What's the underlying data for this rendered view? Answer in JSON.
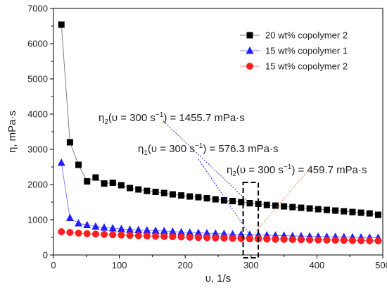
{
  "chart_data": {
    "type": "scatter",
    "xlabel": "υ, 1/s",
    "ylabel": "η, mPa·s",
    "xlim": [
      0,
      500
    ],
    "ylim": [
      0,
      7000
    ],
    "xticks": [
      0,
      100,
      200,
      300,
      400,
      500
    ],
    "yticks": [
      0,
      1000,
      2000,
      3000,
      4000,
      5000,
      6000,
      7000
    ],
    "grid": false,
    "legend_position": "top-right",
    "series": [
      {
        "name": "20 wt% copolymer 2",
        "color": "#000000",
        "line_color": "#808080",
        "marker": "square",
        "points": [
          {
            "x": 12,
            "y": 6540
          },
          {
            "x": 25,
            "y": 3200
          },
          {
            "x": 38,
            "y": 2560
          },
          {
            "x": 51,
            "y": 2090
          },
          {
            "x": 64,
            "y": 2200
          },
          {
            "x": 77,
            "y": 2030
          },
          {
            "x": 90,
            "y": 2050
          },
          {
            "x": 103,
            "y": 1980
          },
          {
            "x": 116,
            "y": 1900
          },
          {
            "x": 129,
            "y": 1860
          },
          {
            "x": 142,
            "y": 1820
          },
          {
            "x": 155,
            "y": 1790
          },
          {
            "x": 168,
            "y": 1760
          },
          {
            "x": 181,
            "y": 1720
          },
          {
            "x": 194,
            "y": 1690
          },
          {
            "x": 207,
            "y": 1660
          },
          {
            "x": 220,
            "y": 1640
          },
          {
            "x": 233,
            "y": 1610
          },
          {
            "x": 246,
            "y": 1580
          },
          {
            "x": 259,
            "y": 1550
          },
          {
            "x": 272,
            "y": 1530
          },
          {
            "x": 285,
            "y": 1500
          },
          {
            "x": 298,
            "y": 1470
          },
          {
            "x": 311,
            "y": 1450
          },
          {
            "x": 324,
            "y": 1420
          },
          {
            "x": 337,
            "y": 1400
          },
          {
            "x": 350,
            "y": 1380
          },
          {
            "x": 363,
            "y": 1360
          },
          {
            "x": 376,
            "y": 1340
          },
          {
            "x": 389,
            "y": 1320
          },
          {
            "x": 402,
            "y": 1300
          },
          {
            "x": 415,
            "y": 1280
          },
          {
            "x": 428,
            "y": 1260
          },
          {
            "x": 441,
            "y": 1240
          },
          {
            "x": 454,
            "y": 1220
          },
          {
            "x": 467,
            "y": 1200
          },
          {
            "x": 480,
            "y": 1180
          },
          {
            "x": 493,
            "y": 1140
          }
        ]
      },
      {
        "name": "15 wt% copolymer 1",
        "color": "#1f1fff",
        "line_color": "#7f7fff",
        "marker": "triangle",
        "points": [
          {
            "x": 12,
            "y": 2620
          },
          {
            "x": 25,
            "y": 1050
          },
          {
            "x": 38,
            "y": 900
          },
          {
            "x": 51,
            "y": 850
          },
          {
            "x": 64,
            "y": 810
          },
          {
            "x": 77,
            "y": 780
          },
          {
            "x": 90,
            "y": 760
          },
          {
            "x": 103,
            "y": 740
          },
          {
            "x": 116,
            "y": 720
          },
          {
            "x": 129,
            "y": 710
          },
          {
            "x": 142,
            "y": 700
          },
          {
            "x": 155,
            "y": 690
          },
          {
            "x": 168,
            "y": 680
          },
          {
            "x": 181,
            "y": 665
          },
          {
            "x": 194,
            "y": 650
          },
          {
            "x": 207,
            "y": 640
          },
          {
            "x": 220,
            "y": 630
          },
          {
            "x": 233,
            "y": 620
          },
          {
            "x": 246,
            "y": 610
          },
          {
            "x": 259,
            "y": 600
          },
          {
            "x": 272,
            "y": 590
          },
          {
            "x": 285,
            "y": 585
          },
          {
            "x": 298,
            "y": 576
          },
          {
            "x": 311,
            "y": 570
          },
          {
            "x": 324,
            "y": 560
          },
          {
            "x": 337,
            "y": 555
          },
          {
            "x": 350,
            "y": 550
          },
          {
            "x": 363,
            "y": 540
          },
          {
            "x": 376,
            "y": 535
          },
          {
            "x": 389,
            "y": 530
          },
          {
            "x": 402,
            "y": 525
          },
          {
            "x": 415,
            "y": 520
          },
          {
            "x": 428,
            "y": 515
          },
          {
            "x": 441,
            "y": 510
          },
          {
            "x": 454,
            "y": 505
          },
          {
            "x": 467,
            "y": 500
          },
          {
            "x": 480,
            "y": 495
          },
          {
            "x": 493,
            "y": 490
          }
        ]
      },
      {
        "name": "15 wt% copolymer 2",
        "color": "#ff1f1f",
        "line_color": "#ff7f7f",
        "marker": "circle",
        "points": [
          {
            "x": 12,
            "y": 660
          },
          {
            "x": 25,
            "y": 640
          },
          {
            "x": 38,
            "y": 620
          },
          {
            "x": 51,
            "y": 605
          },
          {
            "x": 64,
            "y": 595
          },
          {
            "x": 77,
            "y": 585
          },
          {
            "x": 90,
            "y": 575
          },
          {
            "x": 103,
            "y": 565
          },
          {
            "x": 116,
            "y": 555
          },
          {
            "x": 129,
            "y": 548
          },
          {
            "x": 142,
            "y": 540
          },
          {
            "x": 155,
            "y": 532
          },
          {
            "x": 168,
            "y": 525
          },
          {
            "x": 181,
            "y": 518
          },
          {
            "x": 194,
            "y": 510
          },
          {
            "x": 207,
            "y": 503
          },
          {
            "x": 220,
            "y": 496
          },
          {
            "x": 233,
            "y": 490
          },
          {
            "x": 246,
            "y": 484
          },
          {
            "x": 259,
            "y": 478
          },
          {
            "x": 272,
            "y": 472
          },
          {
            "x": 285,
            "y": 466
          },
          {
            "x": 298,
            "y": 460
          },
          {
            "x": 311,
            "y": 455
          },
          {
            "x": 324,
            "y": 450
          },
          {
            "x": 337,
            "y": 446
          },
          {
            "x": 350,
            "y": 442
          },
          {
            "x": 363,
            "y": 438
          },
          {
            "x": 376,
            "y": 434
          },
          {
            "x": 389,
            "y": 430
          },
          {
            "x": 402,
            "y": 426
          },
          {
            "x": 415,
            "y": 422
          },
          {
            "x": 428,
            "y": 418
          },
          {
            "x": 441,
            "y": 414
          },
          {
            "x": 454,
            "y": 410
          },
          {
            "x": 467,
            "y": 406
          },
          {
            "x": 480,
            "y": 402
          },
          {
            "x": 493,
            "y": 398
          }
        ]
      }
    ],
    "highlight_box": {
      "x0": 288,
      "x1": 311,
      "y0": -80,
      "y1": 2060
    },
    "annotations": [
      {
        "eta": "η",
        "eta_sub": "2",
        "pre": "(υ = 300 s",
        "sup": "−1",
        "post": ") = 1455.7 mPa·s",
        "color": "#3333cc",
        "target_x": 298,
        "target_y": 1470
      },
      {
        "eta": "η",
        "eta_sub": "1",
        "pre": "(υ = 300 s",
        "sup": "−1",
        "post": ") = 576.3 mPa·s",
        "color": "#1f1fff",
        "target_x": 298,
        "target_y": 576
      },
      {
        "eta": "η",
        "eta_sub": "2",
        "pre": "(υ = 300 s",
        "sup": "−1",
        "post": ") = 459.7 mPa·s",
        "color": "#ff7f50",
        "target_x": 298,
        "target_y": 460
      }
    ]
  }
}
